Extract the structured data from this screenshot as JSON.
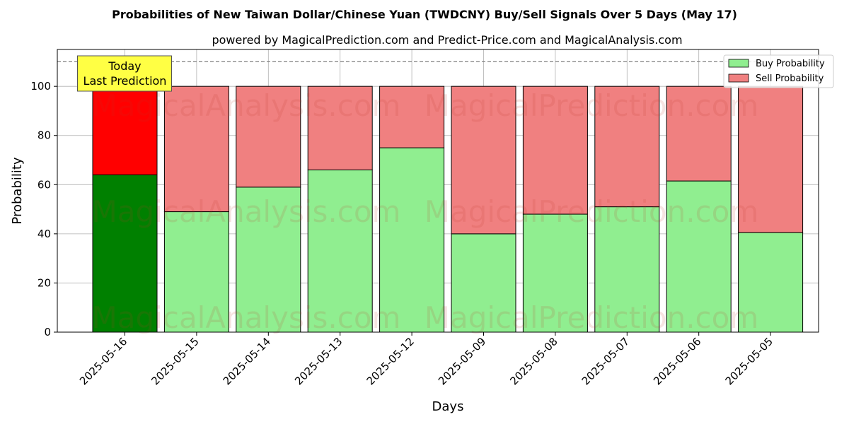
{
  "chart_data": {
    "type": "bar",
    "title": "Probabilities of New Taiwan Dollar/Chinese Yuan (TWDCNY) Buy/Sell Signals Over 5 Days (May 17)",
    "subtitle": "powered by MagicalPrediction.com and Predict-Price.com and MagicalAnalysis.com",
    "xlabel": "Days",
    "ylabel": "Probability",
    "ylim": [
      0,
      115
    ],
    "yticks": [
      0,
      20,
      40,
      60,
      80,
      100
    ],
    "categories": [
      "2025-05-16",
      "2025-05-15",
      "2025-05-14",
      "2025-05-13",
      "2025-05-12",
      "2025-05-09",
      "2025-05-08",
      "2025-05-07",
      "2025-05-06",
      "2025-05-05"
    ],
    "stacked": true,
    "series": [
      {
        "name": "Buy Probability",
        "values": [
          64,
          49,
          59,
          66,
          75,
          40,
          48,
          51,
          61.5,
          40.5
        ],
        "color": "#90ee90",
        "highlight_color": "#008000"
      },
      {
        "name": "Sell Probability",
        "values": [
          36,
          51,
          41,
          34,
          25,
          60,
          52,
          49,
          38.5,
          59.5
        ],
        "color": "#f08080",
        "highlight_color": "#ff0000"
      }
    ],
    "highlight_index": 0,
    "reference_line": {
      "y": 110,
      "style": "dashed",
      "color": "#808080"
    },
    "annotation": {
      "lines": [
        "Today",
        "Last Prediction"
      ],
      "category_index": 0,
      "background": "#ffff44"
    },
    "watermarks": [
      "MagicalAnalysis.com",
      "MagicalPrediction.com"
    ],
    "grid": true,
    "legend_position": "top-right"
  }
}
